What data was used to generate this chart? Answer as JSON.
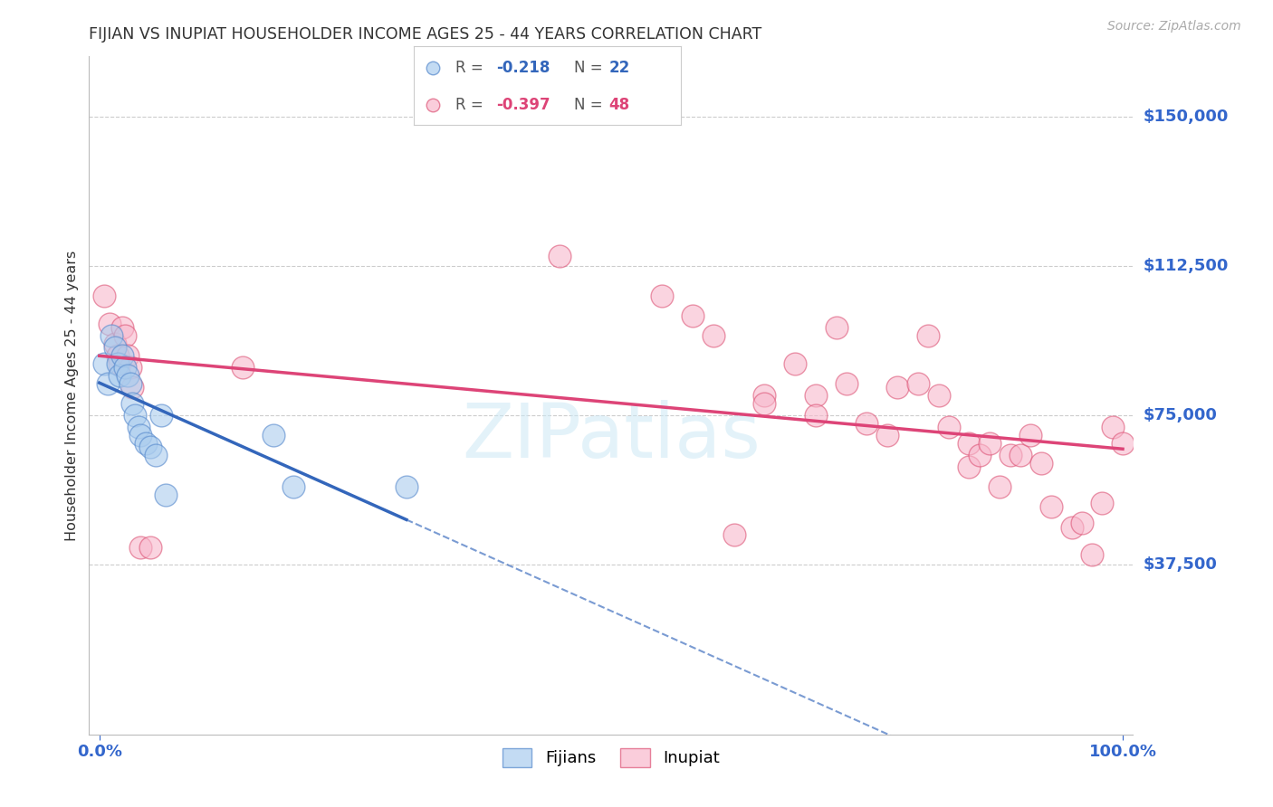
{
  "title": "FIJIAN VS INUPIAT HOUSEHOLDER INCOME AGES 25 - 44 YEARS CORRELATION CHART",
  "source": "Source: ZipAtlas.com",
  "ylabel": "Householder Income Ages 25 - 44 years",
  "ytick_labels": [
    "$37,500",
    "$75,000",
    "$112,500",
    "$150,000"
  ],
  "ytick_values": [
    37500,
    75000,
    112500,
    150000
  ],
  "ymin": -5000,
  "ymax": 165000,
  "xmin": -0.01,
  "xmax": 1.01,
  "fijian_fill": "#aaccee",
  "fijian_edge": "#5588cc",
  "inupiat_fill": "#f8b8cc",
  "inupiat_edge": "#dd5577",
  "fijian_line_color": "#3366bb",
  "inupiat_line_color": "#dd4477",
  "legend_fijian_R": "-0.218",
  "legend_fijian_N": "22",
  "legend_inupiat_R": "-0.397",
  "legend_inupiat_N": "48",
  "background_color": "#ffffff",
  "grid_color": "#cccccc",
  "title_color": "#333333",
  "axis_tick_color": "#3366cc",
  "fijian_points_x": [
    0.005,
    0.008,
    0.012,
    0.015,
    0.018,
    0.02,
    0.022,
    0.025,
    0.028,
    0.03,
    0.032,
    0.035,
    0.038,
    0.04,
    0.045,
    0.05,
    0.055,
    0.06,
    0.065,
    0.17,
    0.19,
    0.3
  ],
  "fijian_points_y": [
    88000,
    83000,
    95000,
    92000,
    88000,
    85000,
    90000,
    87000,
    85000,
    83000,
    78000,
    75000,
    72000,
    70000,
    68000,
    67000,
    65000,
    75000,
    55000,
    70000,
    57000,
    57000
  ],
  "inupiat_points_x": [
    0.005,
    0.01,
    0.015,
    0.018,
    0.02,
    0.022,
    0.025,
    0.028,
    0.03,
    0.032,
    0.04,
    0.05,
    0.14,
    0.45,
    0.55,
    0.58,
    0.6,
    0.62,
    0.65,
    0.65,
    0.68,
    0.7,
    0.7,
    0.72,
    0.73,
    0.75,
    0.77,
    0.78,
    0.8,
    0.81,
    0.82,
    0.83,
    0.85,
    0.85,
    0.86,
    0.87,
    0.88,
    0.89,
    0.9,
    0.91,
    0.92,
    0.93,
    0.95,
    0.96,
    0.97,
    0.98,
    0.99,
    1.0
  ],
  "inupiat_points_y": [
    105000,
    98000,
    93000,
    90000,
    88000,
    97000,
    95000,
    90000,
    87000,
    82000,
    42000,
    42000,
    87000,
    115000,
    105000,
    100000,
    95000,
    45000,
    80000,
    78000,
    88000,
    80000,
    75000,
    97000,
    83000,
    73000,
    70000,
    82000,
    83000,
    95000,
    80000,
    72000,
    68000,
    62000,
    65000,
    68000,
    57000,
    65000,
    65000,
    70000,
    63000,
    52000,
    47000,
    48000,
    40000,
    53000,
    72000,
    68000
  ]
}
